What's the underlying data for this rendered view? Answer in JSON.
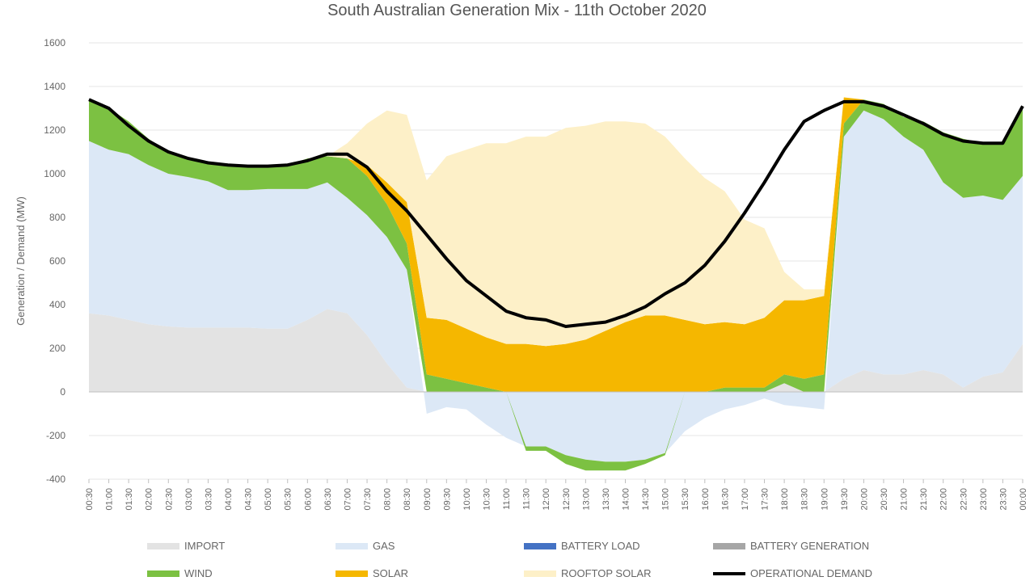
{
  "chart_data": {
    "type": "area",
    "title": "South Australian Generation Mix - 11th October 2020",
    "ylabel": "Generation / Demand (MW)",
    "xlabel": "",
    "ylim": [
      -400,
      1600
    ],
    "yticks": [
      -400,
      -200,
      0,
      200,
      400,
      600,
      800,
      1000,
      1200,
      1400,
      1600
    ],
    "grid": true,
    "legend_position": "bottom",
    "x": [
      "00:30",
      "01:00",
      "01:30",
      "02:00",
      "02:30",
      "03:00",
      "03:30",
      "04:00",
      "04:30",
      "05:00",
      "05:30",
      "06:00",
      "06:30",
      "07:00",
      "07:30",
      "08:00",
      "08:30",
      "09:00",
      "09:30",
      "10:00",
      "10:30",
      "11:00",
      "11:30",
      "12:00",
      "12:30",
      "13:00",
      "13:30",
      "14:00",
      "14:30",
      "15:00",
      "15:30",
      "16:00",
      "16:30",
      "17:00",
      "17:30",
      "18:00",
      "18:30",
      "19:00",
      "19:30",
      "20:00",
      "20:30",
      "21:00",
      "21:30",
      "22:00",
      "22:30",
      "23:00",
      "23:30",
      "00:00"
    ],
    "series": [
      {
        "name": "IMPORT",
        "color": "#e3e3e3",
        "values": [
          360,
          350,
          330,
          310,
          300,
          295,
          295,
          295,
          295,
          290,
          290,
          330,
          380,
          360,
          260,
          130,
          20,
          0,
          0,
          0,
          0,
          0,
          0,
          0,
          0,
          0,
          0,
          0,
          0,
          0,
          0,
          0,
          0,
          0,
          0,
          40,
          0,
          0,
          60,
          100,
          80,
          80,
          100,
          80,
          20,
          70,
          90,
          220
        ]
      },
      {
        "name": "GAS",
        "color": "#dce8f6",
        "values": [
          790,
          760,
          760,
          730,
          700,
          690,
          670,
          630,
          630,
          640,
          640,
          600,
          580,
          530,
          550,
          580,
          540,
          -100,
          -70,
          -80,
          -150,
          -210,
          -250,
          -250,
          -290,
          -310,
          -320,
          -320,
          -310,
          -280,
          -180,
          -120,
          -80,
          -60,
          -30,
          -60,
          -70,
          -80,
          1110,
          1190,
          1170,
          1090,
          1010,
          880,
          870,
          830,
          790,
          770
        ]
      },
      {
        "name": "BATTERY LOAD",
        "color": "#4472c4",
        "values": [
          0,
          0,
          0,
          0,
          0,
          0,
          0,
          0,
          0,
          0,
          0,
          0,
          0,
          0,
          0,
          0,
          0,
          0,
          0,
          0,
          0,
          0,
          0,
          0,
          0,
          0,
          0,
          0,
          0,
          0,
          0,
          0,
          0,
          0,
          0,
          0,
          0,
          0,
          0,
          0,
          0,
          0,
          0,
          0,
          0,
          0,
          0,
          0
        ]
      },
      {
        "name": "BATTERY GENERATION",
        "color": "#a6a6a6",
        "values": [
          0,
          0,
          0,
          0,
          0,
          0,
          0,
          0,
          0,
          0,
          0,
          0,
          0,
          0,
          0,
          0,
          0,
          0,
          0,
          0,
          0,
          0,
          0,
          0,
          0,
          0,
          0,
          0,
          0,
          0,
          0,
          0,
          0,
          0,
          0,
          0,
          0,
          0,
          0,
          0,
          0,
          0,
          0,
          0,
          0,
          0,
          0,
          0
        ]
      },
      {
        "name": "WIND",
        "color": "#7cc142",
        "values": [
          190,
          190,
          150,
          120,
          100,
          90,
          90,
          110,
          110,
          110,
          110,
          140,
          120,
          180,
          180,
          150,
          120,
          80,
          60,
          40,
          20,
          0,
          -20,
          -20,
          -40,
          -50,
          -40,
          -40,
          -20,
          -10,
          0,
          0,
          20,
          20,
          20,
          40,
          60,
          80,
          60,
          50,
          70,
          90,
          130,
          230,
          270,
          240,
          260,
          310
        ]
      },
      {
        "name": "SOLAR",
        "color": "#f5b700",
        "values": [
          0,
          0,
          0,
          0,
          0,
          0,
          0,
          0,
          0,
          0,
          0,
          0,
          0,
          0,
          50,
          100,
          190,
          260,
          270,
          250,
          230,
          220,
          220,
          210,
          220,
          240,
          280,
          320,
          350,
          350,
          330,
          310,
          300,
          290,
          320,
          340,
          360,
          360,
          120,
          0,
          0,
          0,
          0,
          0,
          0,
          0,
          0,
          0
        ]
      },
      {
        "name": "ROOFTOP SOLAR",
        "color": "#fdf0c8",
        "values": [
          0,
          0,
          0,
          0,
          0,
          0,
          0,
          0,
          0,
          0,
          0,
          0,
          0,
          70,
          190,
          330,
          400,
          630,
          750,
          820,
          890,
          920,
          950,
          960,
          990,
          980,
          960,
          920,
          880,
          820,
          740,
          670,
          600,
          480,
          410,
          130,
          50,
          30,
          0,
          0,
          0,
          0,
          0,
          0,
          0,
          0,
          0,
          0
        ]
      },
      {
        "name": "OPERATIONAL DEMAND",
        "color": "#000000",
        "values": [
          1340,
          1300,
          1220,
          1150,
          1100,
          1070,
          1050,
          1040,
          1035,
          1035,
          1040,
          1060,
          1090,
          1090,
          1030,
          920,
          830,
          720,
          610,
          510,
          440,
          370,
          340,
          330,
          300,
          310,
          320,
          350,
          390,
          450,
          500,
          580,
          690,
          820,
          960,
          1110,
          1240,
          1290,
          1330,
          1330,
          1310,
          1270,
          1230,
          1180,
          1150,
          1140,
          1140,
          1310
        ]
      }
    ]
  }
}
